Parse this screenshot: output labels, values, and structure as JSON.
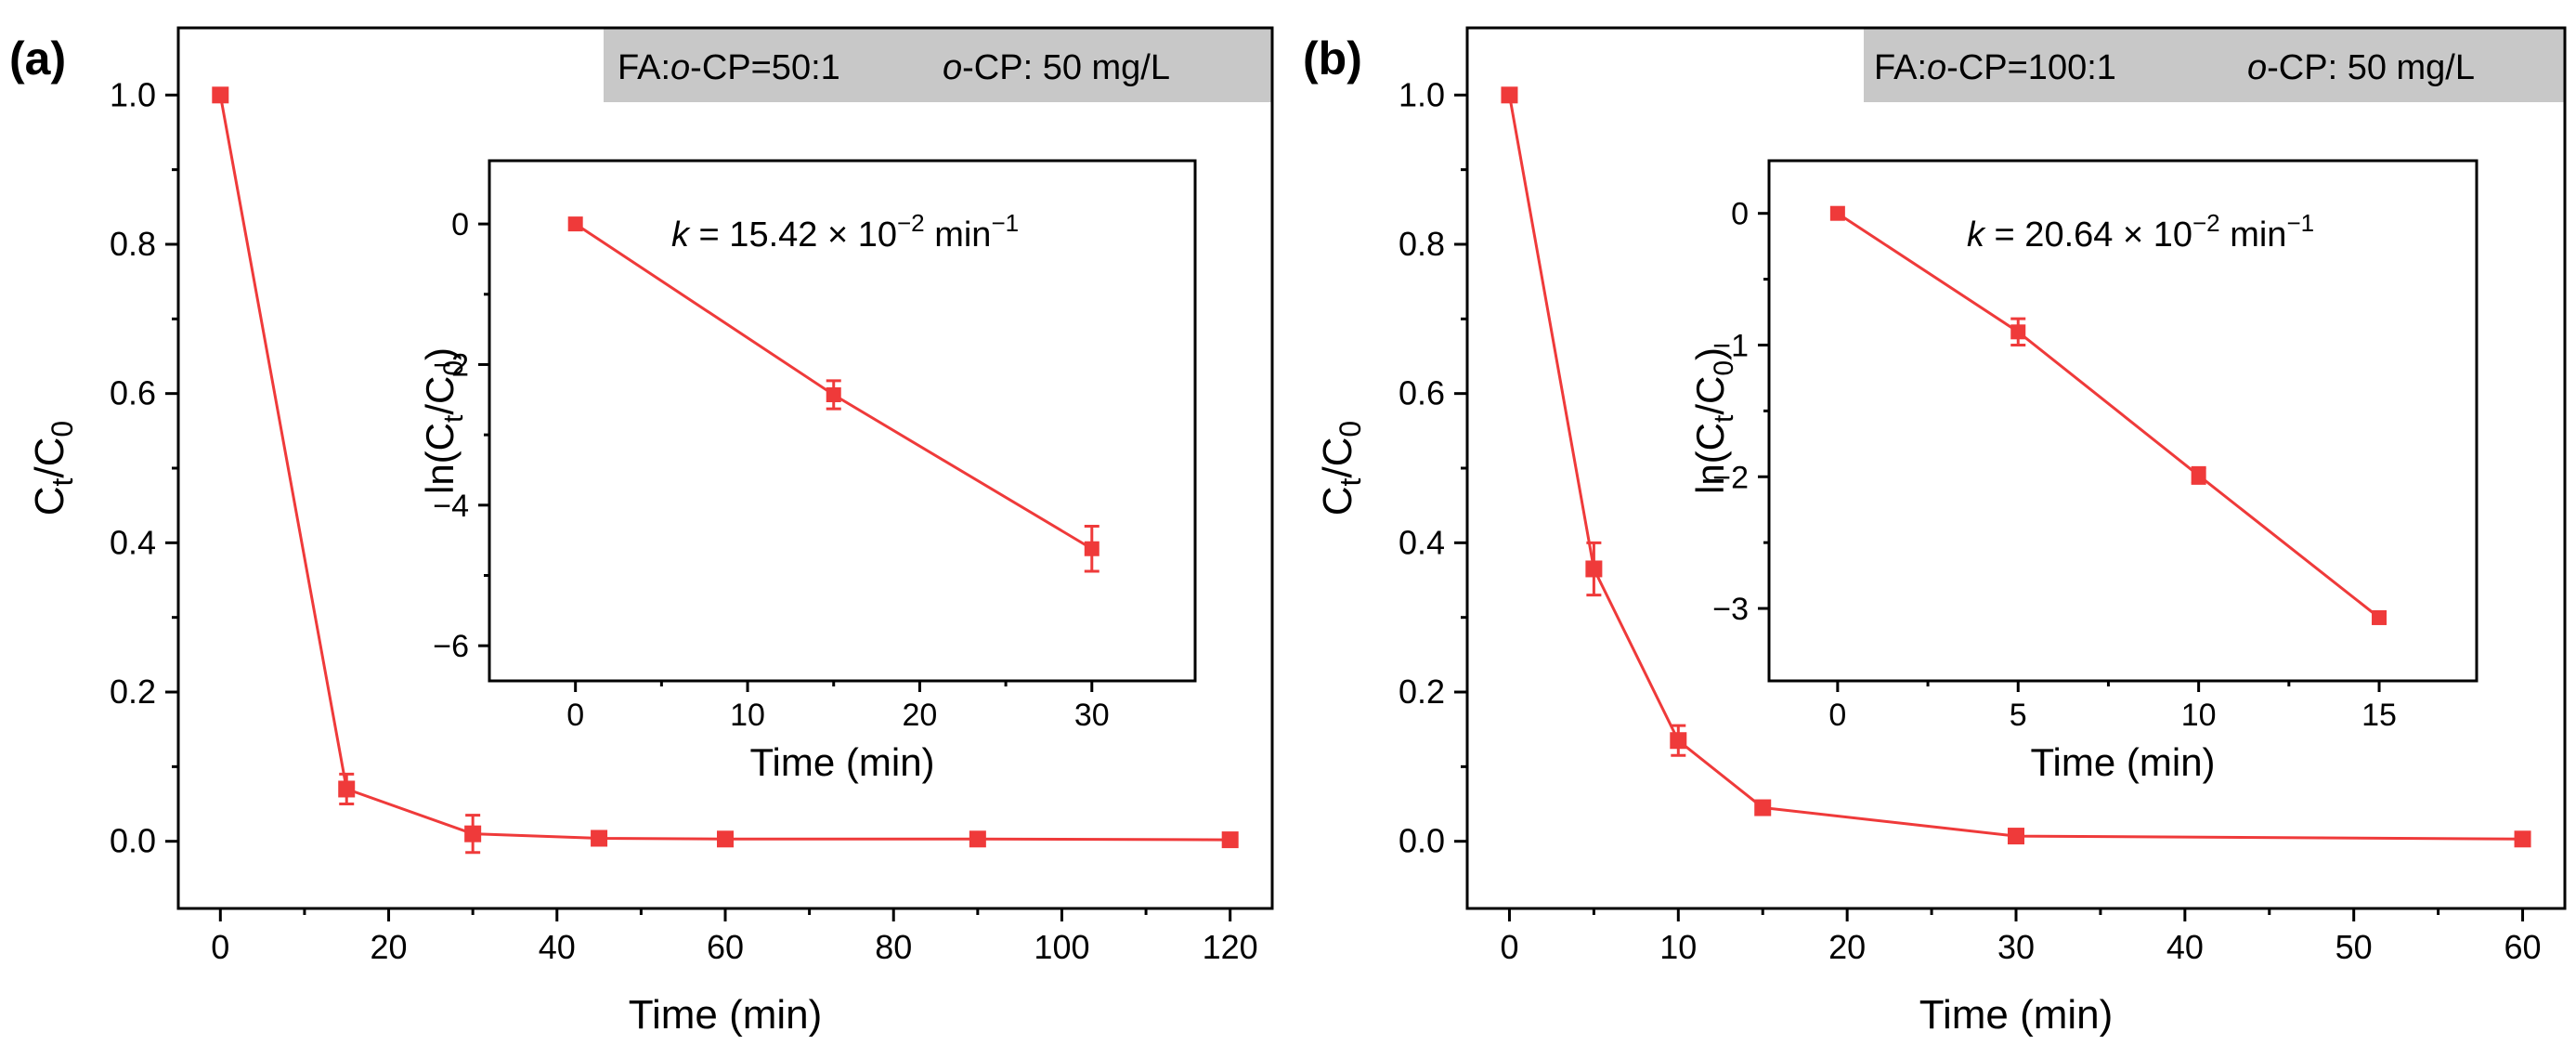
{
  "chart_data": [
    {
      "type": "line",
      "panel_label": "(a)",
      "condition_ratio_prefix": "FA:",
      "condition_ratio_species": "o",
      "condition_ratio_suffix": "-CP=50:1",
      "condition_conc_species": "o",
      "condition_conc_suffix": "-CP: 50 mg/L",
      "color": "#EF3A3A",
      "legend_bg": "#C8C8C8",
      "xlabel": "Time (min)",
      "ylabel_main": "C",
      "ylabel_sub1": "t",
      "ylabel_sep": "/C",
      "ylabel_sub2": "0",
      "xlim": [
        -5,
        125
      ],
      "ylim": [
        -0.09,
        1.09
      ],
      "xticks": [
        0,
        20,
        40,
        60,
        80,
        100,
        120
      ],
      "yticks": [
        0.0,
        0.2,
        0.4,
        0.6,
        0.8,
        1.0
      ],
      "xticklabels": [
        "0",
        "20",
        "40",
        "60",
        "80",
        "100",
        "120"
      ],
      "yticklabels": [
        "0.0",
        "0.2",
        "0.4",
        "0.6",
        "0.8",
        "1.0"
      ],
      "series": [
        {
          "name": "Ct/C0",
          "x": [
            0,
            15,
            30,
            45,
            60,
            90,
            120
          ],
          "y": [
            1.0,
            0.07,
            0.01,
            0.004,
            0.003,
            0.003,
            0.002
          ],
          "err": [
            0,
            0.02,
            0.025,
            0.006,
            0.005,
            0.005,
            0.005
          ]
        }
      ],
      "inset": {
        "type": "line",
        "xlabel": "Time (min)",
        "ylabel_main": "ln(C",
        "ylabel_sub1": "t",
        "ylabel_sep": "/C",
        "ylabel_sub2": "0",
        "ylabel_end": ")",
        "xlim": [
          -5,
          36
        ],
        "ylim": [
          -6.5,
          0.9
        ],
        "xticks": [
          0,
          10,
          20,
          30
        ],
        "yticks": [
          0,
          -2,
          -4,
          -6
        ],
        "xticklabels": [
          "0",
          "10",
          "20",
          "30"
        ],
        "yticklabels": [
          "0",
          "−2",
          "−4",
          "−6"
        ],
        "k_prefix": "k",
        "k_value": " = 15.42 × 10",
        "k_exp": "−2",
        "k_unit": " min",
        "k_unit_exp": "−1",
        "series": [
          {
            "name": "ln(Ct/C0)",
            "x": [
              0,
              15,
              30
            ],
            "y": [
              0,
              -2.43,
              -4.62
            ],
            "err": [
              0,
              0.2,
              0.32
            ]
          }
        ]
      }
    },
    {
      "type": "line",
      "panel_label": "(b)",
      "condition_ratio_prefix": "FA:",
      "condition_ratio_species": "o",
      "condition_ratio_suffix": "-CP=100:1",
      "condition_conc_species": "o",
      "condition_conc_suffix": "-CP: 50 mg/L",
      "color": "#EF3A3A",
      "legend_bg": "#C8C8C8",
      "xlabel": "Time (min)",
      "ylabel_main": "C",
      "ylabel_sub1": "t",
      "ylabel_sep": "/C",
      "ylabel_sub2": "0",
      "xlim": [
        -2.5,
        62.5
      ],
      "ylim": [
        -0.09,
        1.09
      ],
      "xticks": [
        0,
        10,
        20,
        30,
        40,
        50,
        60
      ],
      "yticks": [
        0.0,
        0.2,
        0.4,
        0.6,
        0.8,
        1.0
      ],
      "xticklabels": [
        "0",
        "10",
        "20",
        "30",
        "40",
        "50",
        "60"
      ],
      "yticklabels": [
        "0.0",
        "0.2",
        "0.4",
        "0.6",
        "0.8",
        "1.0"
      ],
      "series": [
        {
          "name": "Ct/C0",
          "x": [
            0,
            5,
            10,
            15,
            30,
            60
          ],
          "y": [
            1.0,
            0.365,
            0.135,
            0.045,
            0.007,
            0.003
          ],
          "err": [
            0,
            0.035,
            0.02,
            0.008,
            0.004,
            0.003
          ]
        }
      ],
      "inset": {
        "type": "line",
        "xlabel": "Time (min)",
        "ylabel_main": "ln(C",
        "ylabel_sub1": "t",
        "ylabel_sep": "/C",
        "ylabel_sub2": "0",
        "ylabel_end": ")",
        "xlim": [
          -1.9,
          17.7
        ],
        "ylim": [
          -3.55,
          0.4
        ],
        "xticks": [
          0,
          5,
          10,
          15
        ],
        "yticks": [
          0,
          -1,
          -2,
          -3
        ],
        "xticklabels": [
          "0",
          "5",
          "10",
          "15"
        ],
        "yticklabels": [
          "0",
          "−1",
          "−2",
          "−3"
        ],
        "k_prefix": "k",
        "k_value": " = 20.64 × 10",
        "k_exp": "−2",
        "k_unit": " min",
        "k_unit_exp": "−1",
        "series": [
          {
            "name": "ln(Ct/C0)",
            "x": [
              0,
              5,
              10,
              15
            ],
            "y": [
              0,
              -0.9,
              -1.99,
              -3.07
            ],
            "err": [
              0,
              0.1,
              0.06,
              0.04
            ]
          }
        ]
      }
    }
  ]
}
